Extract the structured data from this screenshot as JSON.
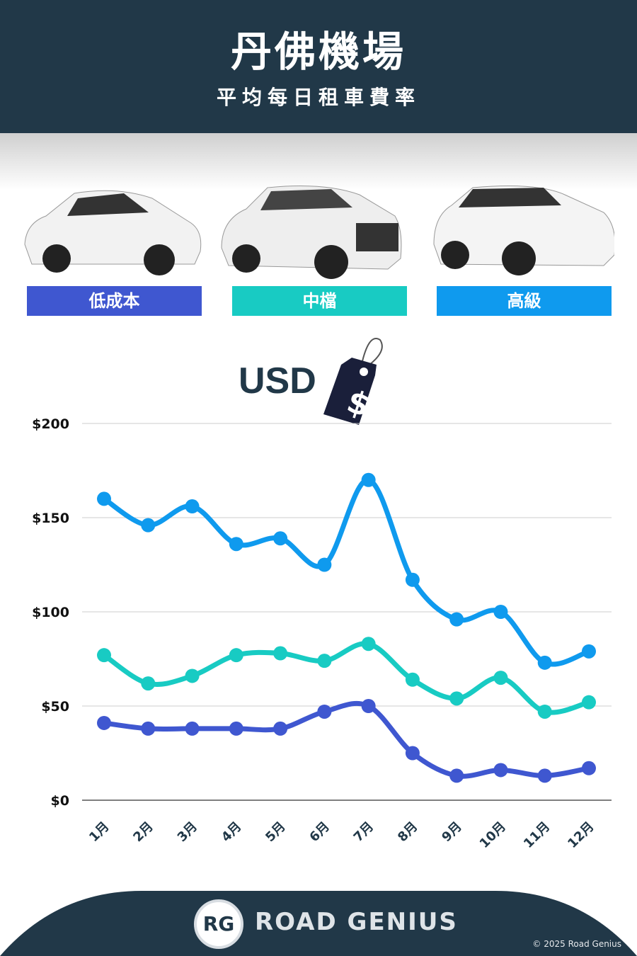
{
  "header": {
    "title": "丹佛機場",
    "subtitle": "平均每日租車費率"
  },
  "categories_labels": [
    {
      "label": "低成本",
      "color": "#3f57d0"
    },
    {
      "label": "中檔",
      "color": "#18cbc3"
    },
    {
      "label": "高級",
      "color": "#0f9aee"
    }
  ],
  "currency": {
    "label": "USD",
    "icon": "price-tag-dollar-icon",
    "symbol": "$"
  },
  "chart_data": {
    "type": "line",
    "categories": [
      "1月",
      "2月",
      "3月",
      "4月",
      "5月",
      "6月",
      "7月",
      "8月",
      "9月",
      "10月",
      "11月",
      "12月"
    ],
    "yticks": [
      "$0",
      "$50",
      "$100",
      "$150",
      "$200"
    ],
    "ylim": [
      0,
      200
    ],
    "grid": true,
    "series": [
      {
        "name": "高級",
        "color": "#0f9aee",
        "values": [
          160,
          146,
          156,
          136,
          139,
          125,
          170,
          117,
          96,
          100,
          73,
          79
        ]
      },
      {
        "name": "中檔",
        "color": "#18cbc3",
        "values": [
          77,
          62,
          66,
          77,
          78,
          74,
          83,
          64,
          54,
          65,
          47,
          52
        ]
      },
      {
        "name": "低成本",
        "color": "#3f57d0",
        "values": [
          41,
          38,
          38,
          38,
          38,
          47,
          50,
          25,
          13,
          16,
          13,
          17
        ]
      }
    ]
  },
  "footer": {
    "brand": "ROAD GENIUS",
    "logo": "RG",
    "copyright": "© 2025 Road Genius"
  }
}
